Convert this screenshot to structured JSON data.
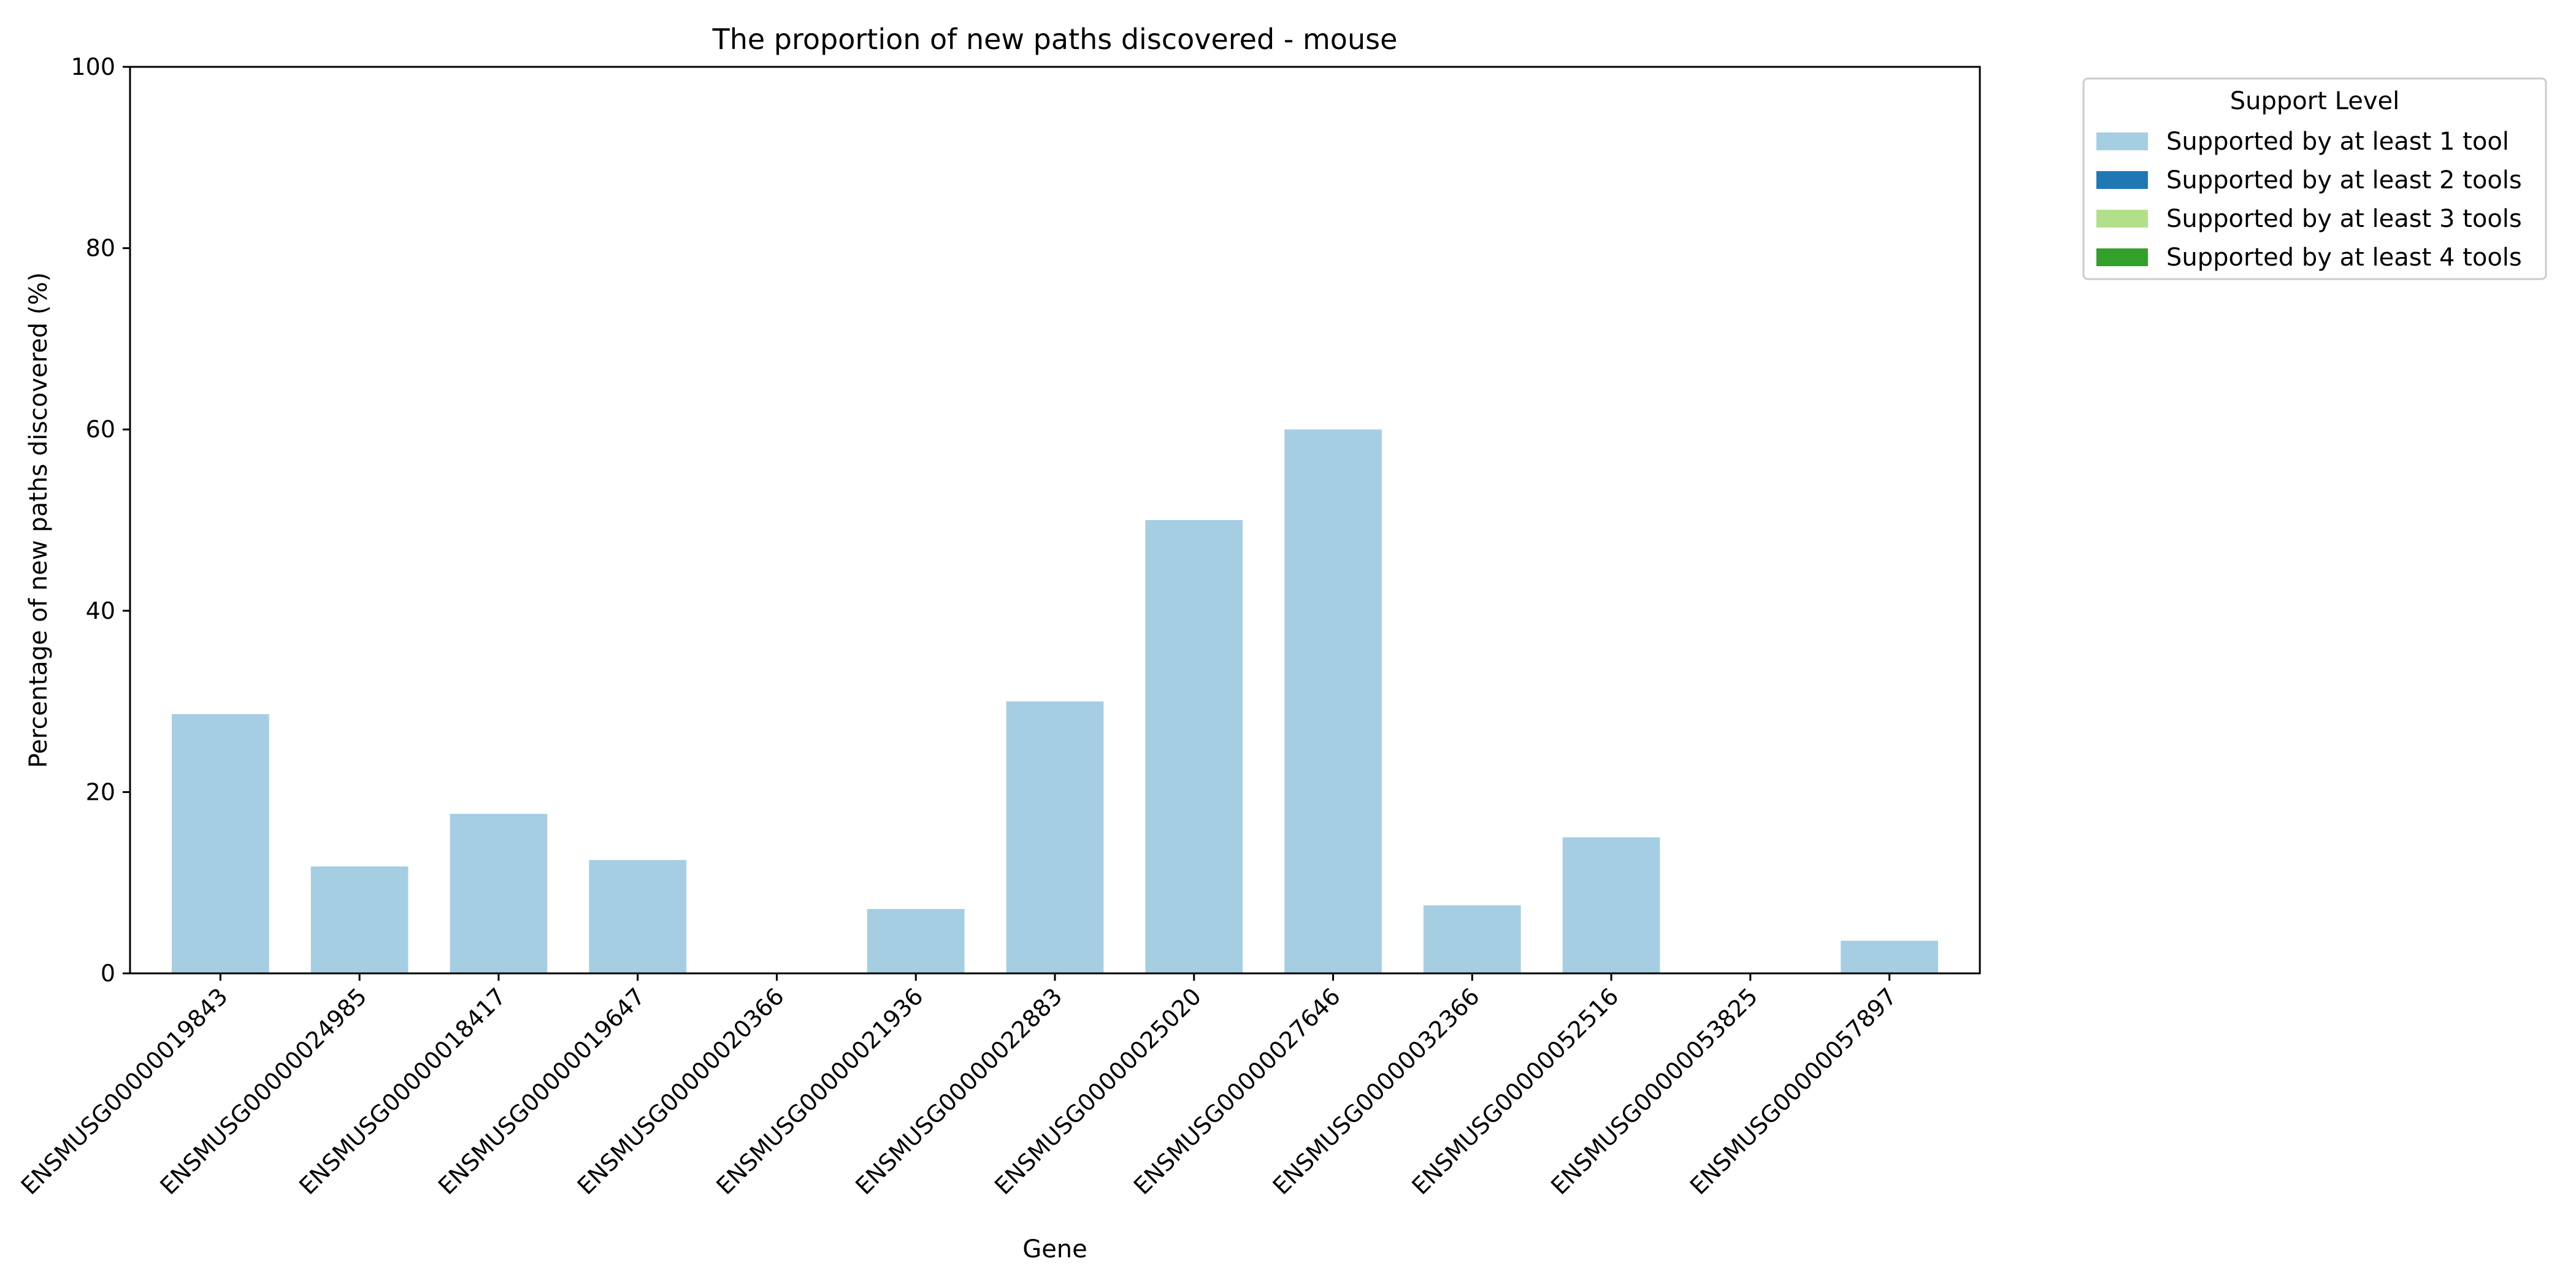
{
  "chart_data": {
    "type": "bar",
    "stacked": true,
    "title": "The proportion of new paths discovered - mouse",
    "xlabel": "Gene",
    "ylabel": "Percentage of new paths discovered (%)",
    "ylim": [
      0,
      100
    ],
    "yticks": [
      0,
      20,
      40,
      60,
      80,
      100
    ],
    "grid": false,
    "legend_title": "Support Level",
    "legend_position": "outside-top-right",
    "categories": [
      "ENSMUSG00000019843",
      "ENSMUSG00000024985",
      "ENSMUSG00000018417",
      "ENSMUSG00000019647",
      "ENSMUSG00000020366",
      "ENSMUSG00000021936",
      "ENSMUSG00000022883",
      "ENSMUSG00000025020",
      "ENSMUSG00000027646",
      "ENSMUSG00000032366",
      "ENSMUSG00000052516",
      "ENSMUSG00000053825",
      "ENSMUSG00000057897"
    ],
    "series": [
      {
        "name": "Supported by at least 1 tool",
        "color": "#a6cee3",
        "values": [
          28.6,
          11.8,
          17.6,
          12.5,
          0,
          7.1,
          30.0,
          50.0,
          60.0,
          7.5,
          15.0,
          0,
          3.6
        ]
      },
      {
        "name": "Supported by at least 2 tools",
        "color": "#1f78b4",
        "values": [
          0,
          0,
          0,
          0,
          0,
          0,
          0,
          0,
          0,
          0,
          0,
          0,
          0
        ]
      },
      {
        "name": "Supported by at least 3 tools",
        "color": "#b2df8a",
        "values": [
          0,
          0,
          0,
          0,
          0,
          0,
          0,
          0,
          0,
          0,
          0,
          0,
          0
        ]
      },
      {
        "name": "Supported by at least 4 tools",
        "color": "#33a02c",
        "values": [
          0,
          0,
          0,
          0,
          0,
          0,
          0,
          0,
          0,
          0,
          0,
          0,
          0
        ]
      }
    ]
  }
}
